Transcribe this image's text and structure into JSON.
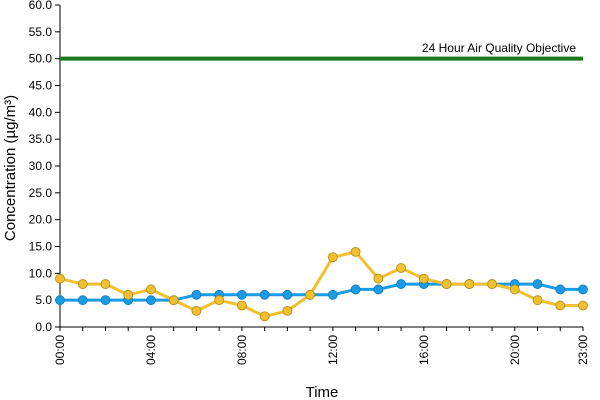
{
  "chart_data": {
    "type": "line",
    "xlabel": "Time",
    "ylabel": "Concentration (µg/m³)",
    "ylim": [
      0,
      60
    ],
    "y_ticks": [
      "0.0",
      "5.0",
      "10.0",
      "15.0",
      "20.0",
      "25.0",
      "30.0",
      "35.0",
      "40.0",
      "45.0",
      "50.0",
      "55.0",
      "60.0"
    ],
    "x": [
      "00:00",
      "01:00",
      "02:00",
      "03:00",
      "04:00",
      "05:00",
      "06:00",
      "07:00",
      "08:00",
      "09:00",
      "10:00",
      "11:00",
      "12:00",
      "13:00",
      "14:00",
      "15:00",
      "16:00",
      "17:00",
      "18:00",
      "19:00",
      "20:00",
      "21:00",
      "22:00",
      "23:00"
    ],
    "x_tick_labels": [
      "00:00",
      "04:00",
      "08:00",
      "12:00",
      "16:00",
      "20:00",
      "23:00"
    ],
    "series": [
      {
        "color": "#1a9be6",
        "values": [
          5,
          5,
          5,
          5,
          5,
          5,
          6,
          6,
          6,
          6,
          6,
          6,
          6,
          7,
          7,
          8,
          8,
          8,
          8,
          8,
          8,
          8,
          7,
          7
        ]
      },
      {
        "color": "#f0c030",
        "values": [
          9,
          8,
          8,
          6,
          7,
          5,
          3,
          5,
          4,
          2,
          3,
          6,
          13,
          14,
          9,
          11,
          9,
          8,
          8,
          8,
          7,
          5,
          4,
          4
        ]
      }
    ],
    "reference_line": {
      "value": 50,
      "label": "24 Hour Air Quality Objective",
      "color": "#1f7a1f"
    },
    "grid": false,
    "legend": "none"
  }
}
